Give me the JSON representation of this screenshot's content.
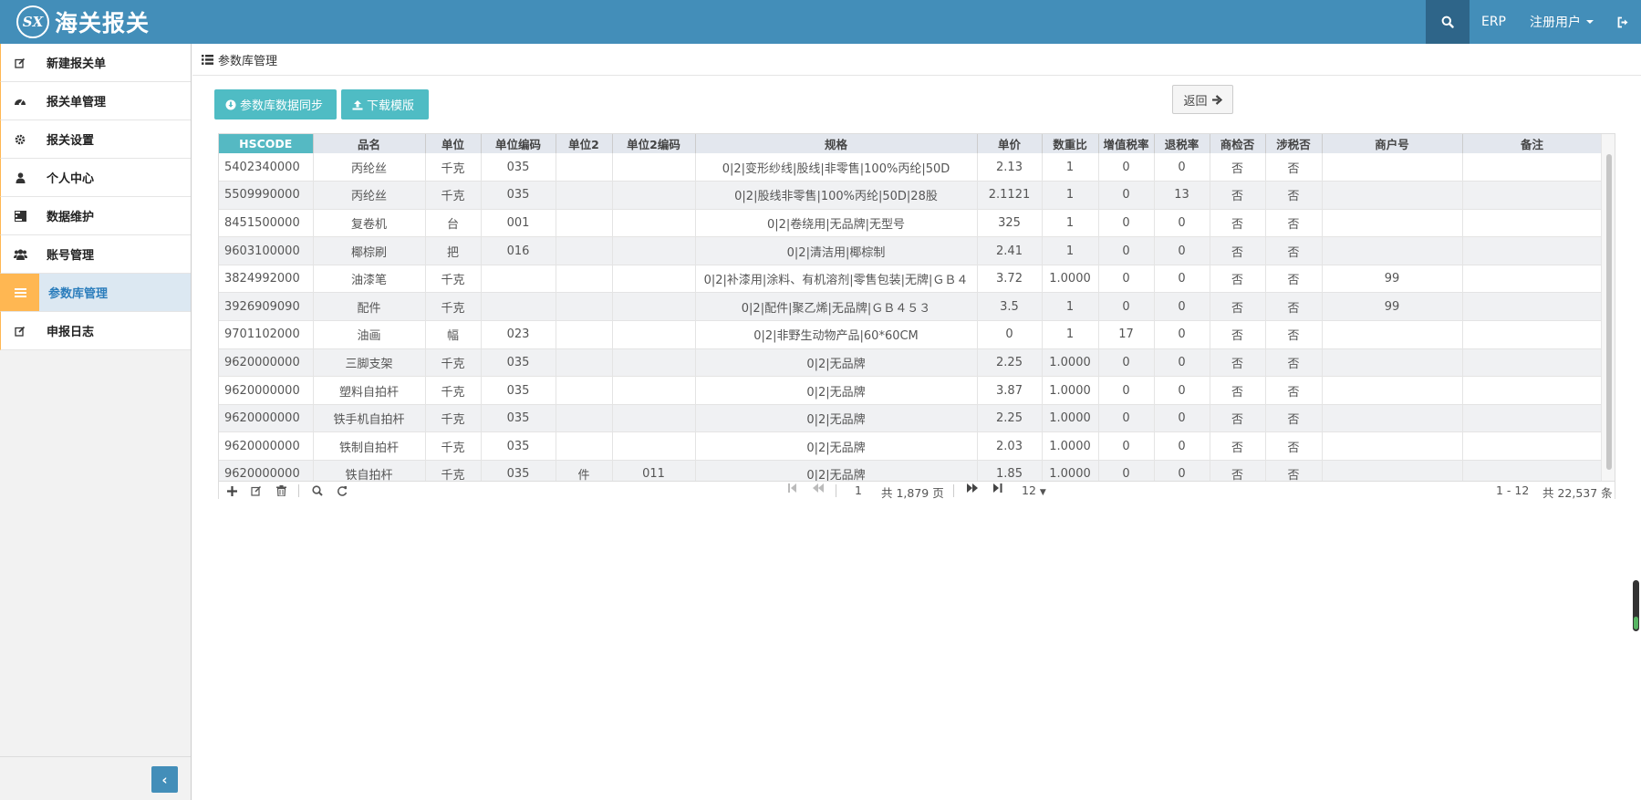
{
  "brand": {
    "logo_text": "SX",
    "name": "海关报关"
  },
  "topbar": {
    "search_icon": "search-icon",
    "erp_label": "ERP",
    "user_label": "注册用户",
    "logout_icon": "sign-out-icon"
  },
  "sidebar": {
    "items": [
      {
        "label": "新建报关单",
        "icon": "edit-icon"
      },
      {
        "label": "报关单管理",
        "icon": "dashboard-icon"
      },
      {
        "label": "报关设置",
        "icon": "gear-icon"
      },
      {
        "label": "个人中心",
        "icon": "user-icon"
      },
      {
        "label": "数据维护",
        "icon": "tasks-icon"
      },
      {
        "label": "账号管理",
        "icon": "users-icon"
      },
      {
        "label": "参数库管理",
        "icon": "list-icon",
        "active": true
      },
      {
        "label": "申报日志",
        "icon": "edit-icon"
      }
    ],
    "collapse_glyph": "‹"
  },
  "breadcrumb": {
    "title": "参数库管理"
  },
  "toolbar": {
    "sync_label": "参数库数据同步",
    "download_label": "下载模版",
    "back_label": "返回"
  },
  "grid": {
    "columns": [
      "HSCODE",
      "品名",
      "单位",
      "单位编码",
      "单位2",
      "单位2编码",
      "规格",
      "单价",
      "数重比",
      "增值税率",
      "退税率",
      "商检否",
      "涉税否",
      "商户号",
      "备注"
    ],
    "rows": [
      [
        "5402340000",
        "丙纶丝",
        "千克",
        "035",
        "",
        "",
        "0|2|变形纱线|股线|非零售|100%丙纶|50D",
        "2.13",
        "1",
        "0",
        "0",
        "否",
        "否",
        "",
        ""
      ],
      [
        "5509990000",
        "丙纶丝",
        "千克",
        "035",
        "",
        "",
        "0|2|股线非零售|100%丙纶|50D|28股",
        "2.1121",
        "1",
        "0",
        "13",
        "否",
        "否",
        "",
        ""
      ],
      [
        "8451500000",
        "复卷机",
        "台",
        "001",
        "",
        "",
        "0|2|卷绕用|无品牌|无型号",
        "325",
        "1",
        "0",
        "0",
        "否",
        "否",
        "",
        ""
      ],
      [
        "9603100000",
        "椰棕刷",
        "把",
        "016",
        "",
        "",
        "0|2|清洁用|椰棕制",
        "2.41",
        "1",
        "0",
        "0",
        "否",
        "否",
        "",
        ""
      ],
      [
        "3824992000",
        "油漆笔",
        "千克",
        "",
        "",
        "",
        "0|2|补漆用|涂料、有机溶剂|零售包装|无牌|ＧＢ４",
        "3.72",
        "1.0000",
        "0",
        "0",
        "否",
        "否",
        "99",
        ""
      ],
      [
        "3926909090",
        "配件",
        "千克",
        "",
        "",
        "",
        "0|2|配件|聚乙烯|无品牌|ＧＢ４５３",
        "3.5",
        "1",
        "0",
        "0",
        "否",
        "否",
        "99",
        ""
      ],
      [
        "9701102000",
        "油画",
        "幅",
        "023",
        "",
        "",
        "0|2|非野生动物产品|60*60CM",
        "0",
        "1",
        "17",
        "0",
        "否",
        "否",
        "",
        ""
      ],
      [
        "9620000000",
        "三脚支架",
        "千克",
        "035",
        "",
        "",
        "0|2|无品牌",
        "2.25",
        "1.0000",
        "0",
        "0",
        "否",
        "否",
        "",
        ""
      ],
      [
        "9620000000",
        "塑料自拍杆",
        "千克",
        "035",
        "",
        "",
        "0|2|无品牌",
        "3.87",
        "1.0000",
        "0",
        "0",
        "否",
        "否",
        "",
        ""
      ],
      [
        "9620000000",
        "铁手机自拍杆",
        "千克",
        "035",
        "",
        "",
        "0|2|无品牌",
        "2.25",
        "1.0000",
        "0",
        "0",
        "否",
        "否",
        "",
        ""
      ],
      [
        "9620000000",
        "铁制自拍杆",
        "千克",
        "035",
        "",
        "",
        "0|2|无品牌",
        "2.03",
        "1.0000",
        "0",
        "0",
        "否",
        "否",
        "",
        ""
      ],
      [
        "9620000000",
        "铁自拍杆",
        "千克",
        "035",
        "件",
        "011",
        "0|2|无品牌",
        "1.85",
        "1.0000",
        "0",
        "0",
        "否",
        "否",
        "",
        ""
      ]
    ]
  },
  "pager": {
    "page": "1",
    "total_pages": "共 1,879 页",
    "page_size": "12",
    "range": "1 - 12",
    "total_records": "共 22,537 条"
  }
}
